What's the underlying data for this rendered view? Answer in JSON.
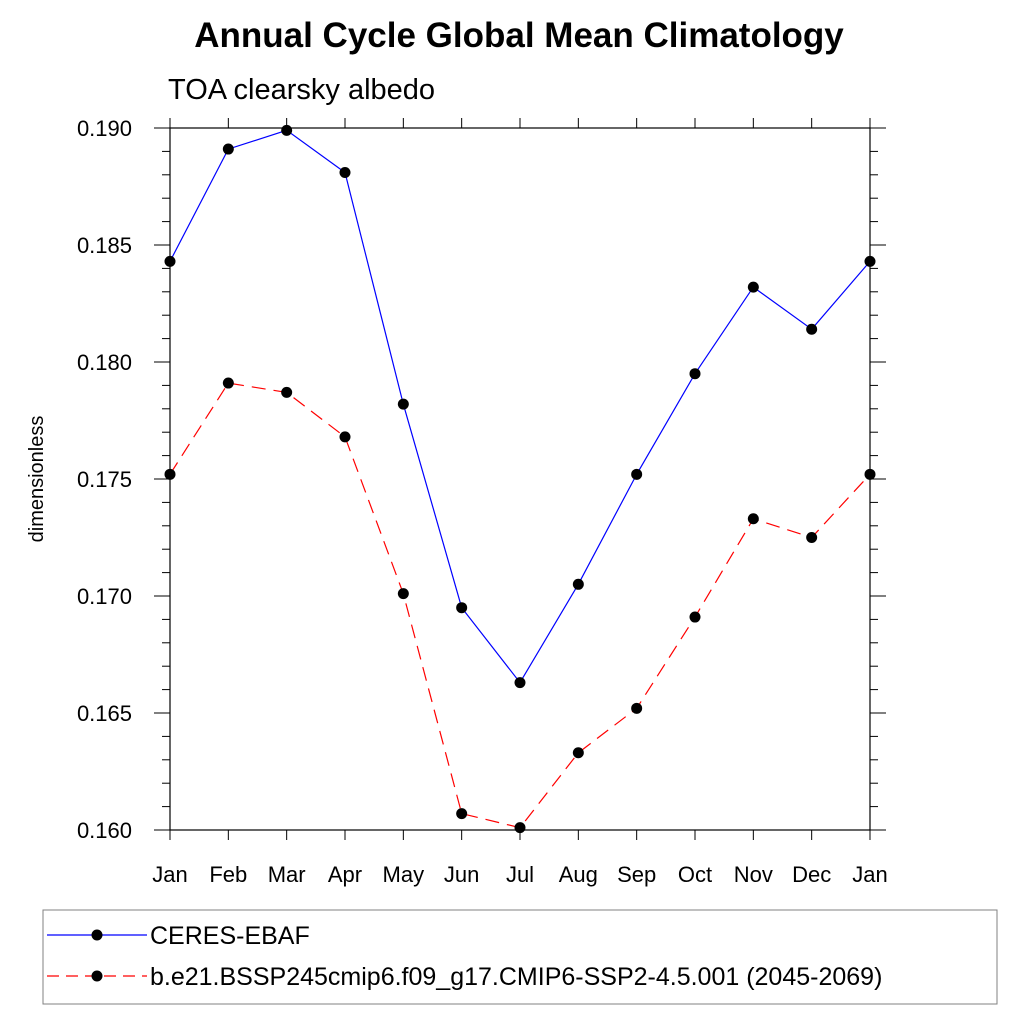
{
  "chart_data": {
    "type": "line",
    "title": "Annual Cycle Global Mean Climatology",
    "subtitle": "TOA clearsky albedo",
    "xlabel": "",
    "ylabel": "dimensionless",
    "categories": [
      "Jan",
      "Feb",
      "Mar",
      "Apr",
      "May",
      "Jun",
      "Jul",
      "Aug",
      "Sep",
      "Oct",
      "Nov",
      "Dec",
      "Jan"
    ],
    "ylim": [
      0.16,
      0.19
    ],
    "yticks": [
      "0.160",
      "0.165",
      "0.170",
      "0.175",
      "0.180",
      "0.185",
      "0.190"
    ],
    "grid": false,
    "legend_placement": "bottom",
    "series": [
      {
        "name": "CERES-EBAF",
        "color": "#0000ff",
        "dash": "solid",
        "values": [
          0.1843,
          0.1891,
          0.1899,
          0.1881,
          0.1782,
          0.1695,
          0.1663,
          0.1705,
          0.1752,
          0.1795,
          0.1832,
          0.1814,
          0.1843
        ]
      },
      {
        "name": "b.e21.BSSP245cmip6.f09_g17.CMIP6-SSP2-4.5.001 (2045-2069)",
        "color": "#ff0000",
        "dash": "dashed",
        "values": [
          0.1752,
          0.1791,
          0.1787,
          0.1768,
          0.1701,
          0.1607,
          0.1601,
          0.1633,
          0.1652,
          0.1691,
          0.1733,
          0.1725,
          0.1752
        ]
      }
    ]
  }
}
